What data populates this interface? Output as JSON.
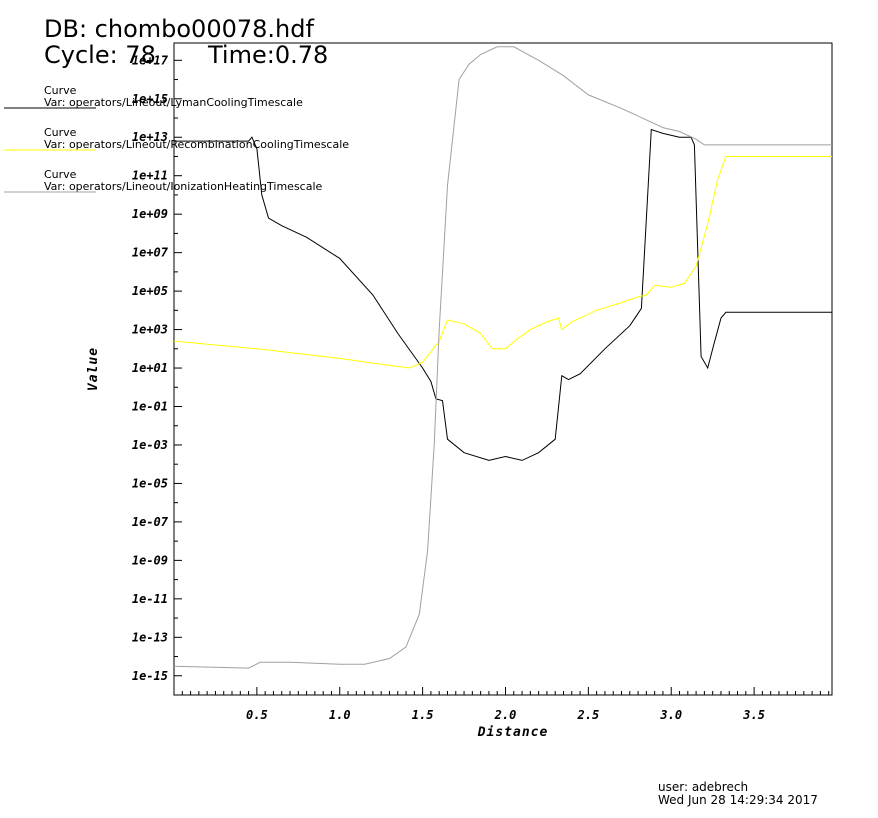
{
  "header": {
    "db": "DB: chombo00078.hdf",
    "cycle": "Cycle: 78",
    "time": "Time:0.78"
  },
  "legend": [
    {
      "label": "Curve",
      "var": "Var: operators/Lineout/LymanCoolingTimescale",
      "color": "#000000"
    },
    {
      "label": "Curve",
      "var": "Var: operators/Lineout/RecombinationCoolingTimescale",
      "color": "#ffff00"
    },
    {
      "label": "Curve",
      "var": "Var: operators/Lineout/IonizationHeatingTimescale",
      "color": "#a0a0a0"
    }
  ],
  "footer": {
    "user": "user: adebrech",
    "date": "Wed Jun 28 14:29:34 2017"
  },
  "chart_data": {
    "type": "line",
    "xlabel": "Distance",
    "ylabel": "Value",
    "yscale": "log",
    "xlim": [
      0.0,
      3.97
    ],
    "ylim_log10": [
      -16,
      17.9
    ],
    "x_ticks": [
      "0.5",
      "1.0",
      "1.5",
      "2.0",
      "2.5",
      "3.0",
      "3.5"
    ],
    "y_ticks": [
      "1e-15",
      "1e-13",
      "1e-11",
      "1e-09",
      "1e-07",
      "1e-05",
      "1e-03",
      "1e-01",
      "1e+01",
      "1e+03",
      "1e+05",
      "1e+07",
      "1e+09",
      "1e+11",
      "1e+13",
      "1e+15",
      "1e+17"
    ],
    "grid": false,
    "series": [
      {
        "name": "LymanCoolingTimescale",
        "color": "#000000",
        "log10_values": [
          [
            0.0,
            12.8
          ],
          [
            0.45,
            12.8
          ],
          [
            0.47,
            13.0
          ],
          [
            0.5,
            12.4
          ],
          [
            0.53,
            10.0
          ],
          [
            0.57,
            8.8
          ],
          [
            0.65,
            8.4
          ],
          [
            0.8,
            7.8
          ],
          [
            1.0,
            6.7
          ],
          [
            1.2,
            4.8
          ],
          [
            1.35,
            2.8
          ],
          [
            1.5,
            1.0
          ],
          [
            1.55,
            0.3
          ],
          [
            1.58,
            -0.6
          ],
          [
            1.62,
            -0.7
          ],
          [
            1.65,
            -2.7
          ],
          [
            1.75,
            -3.4
          ],
          [
            1.9,
            -3.8
          ],
          [
            2.0,
            -3.6
          ],
          [
            2.1,
            -3.8
          ],
          [
            2.2,
            -3.4
          ],
          [
            2.3,
            -2.7
          ],
          [
            2.34,
            0.6
          ],
          [
            2.38,
            0.4
          ],
          [
            2.45,
            0.7
          ],
          [
            2.6,
            2.0
          ],
          [
            2.75,
            3.2
          ],
          [
            2.82,
            4.1
          ],
          [
            2.88,
            13.4
          ],
          [
            2.95,
            13.2
          ],
          [
            3.05,
            13.0
          ],
          [
            3.12,
            13.0
          ],
          [
            3.14,
            12.6
          ],
          [
            3.18,
            1.6
          ],
          [
            3.22,
            1.0
          ],
          [
            3.25,
            2.0
          ],
          [
            3.3,
            3.6
          ],
          [
            3.33,
            3.9
          ],
          [
            3.97,
            3.9
          ]
        ]
      },
      {
        "name": "RecombinationCoolingTimescale",
        "color": "#ffff00",
        "log10_values": [
          [
            0.0,
            2.4
          ],
          [
            0.5,
            2.0
          ],
          [
            1.0,
            1.5
          ],
          [
            1.25,
            1.2
          ],
          [
            1.42,
            1.0
          ],
          [
            1.5,
            1.3
          ],
          [
            1.6,
            2.4
          ],
          [
            1.65,
            3.5
          ],
          [
            1.75,
            3.3
          ],
          [
            1.85,
            2.8
          ],
          [
            1.92,
            2.0
          ],
          [
            2.0,
            2.0
          ],
          [
            2.07,
            2.5
          ],
          [
            2.15,
            3.0
          ],
          [
            2.25,
            3.4
          ],
          [
            2.32,
            3.6
          ],
          [
            2.34,
            3.0
          ],
          [
            2.4,
            3.4
          ],
          [
            2.55,
            4.0
          ],
          [
            2.7,
            4.4
          ],
          [
            2.8,
            4.7
          ],
          [
            2.85,
            4.8
          ],
          [
            2.9,
            5.3
          ],
          [
            3.0,
            5.2
          ],
          [
            3.08,
            5.4
          ],
          [
            3.15,
            6.3
          ],
          [
            3.22,
            8.5
          ],
          [
            3.28,
            10.8
          ],
          [
            3.33,
            12.0
          ],
          [
            3.5,
            12.0
          ],
          [
            3.97,
            12.0
          ]
        ]
      },
      {
        "name": "IonizationHeatingTimescale",
        "color": "#a0a0a0",
        "log10_values": [
          [
            0.0,
            -14.5
          ],
          [
            0.45,
            -14.6
          ],
          [
            0.52,
            -14.3
          ],
          [
            0.7,
            -14.3
          ],
          [
            1.0,
            -14.4
          ],
          [
            1.15,
            -14.4
          ],
          [
            1.3,
            -14.1
          ],
          [
            1.4,
            -13.5
          ],
          [
            1.48,
            -11.8
          ],
          [
            1.53,
            -8.5
          ],
          [
            1.57,
            -3.0
          ],
          [
            1.6,
            3.0
          ],
          [
            1.65,
            10.5
          ],
          [
            1.72,
            16.0
          ],
          [
            1.78,
            16.8
          ],
          [
            1.85,
            17.3
          ],
          [
            1.95,
            17.7
          ],
          [
            2.05,
            17.7
          ],
          [
            2.2,
            17.0
          ],
          [
            2.35,
            16.2
          ],
          [
            2.5,
            15.2
          ],
          [
            2.7,
            14.5
          ],
          [
            2.85,
            13.9
          ],
          [
            2.95,
            13.5
          ],
          [
            3.05,
            13.3
          ],
          [
            3.15,
            12.9
          ],
          [
            3.2,
            12.6
          ],
          [
            3.3,
            12.6
          ],
          [
            3.97,
            12.6
          ]
        ]
      }
    ]
  }
}
